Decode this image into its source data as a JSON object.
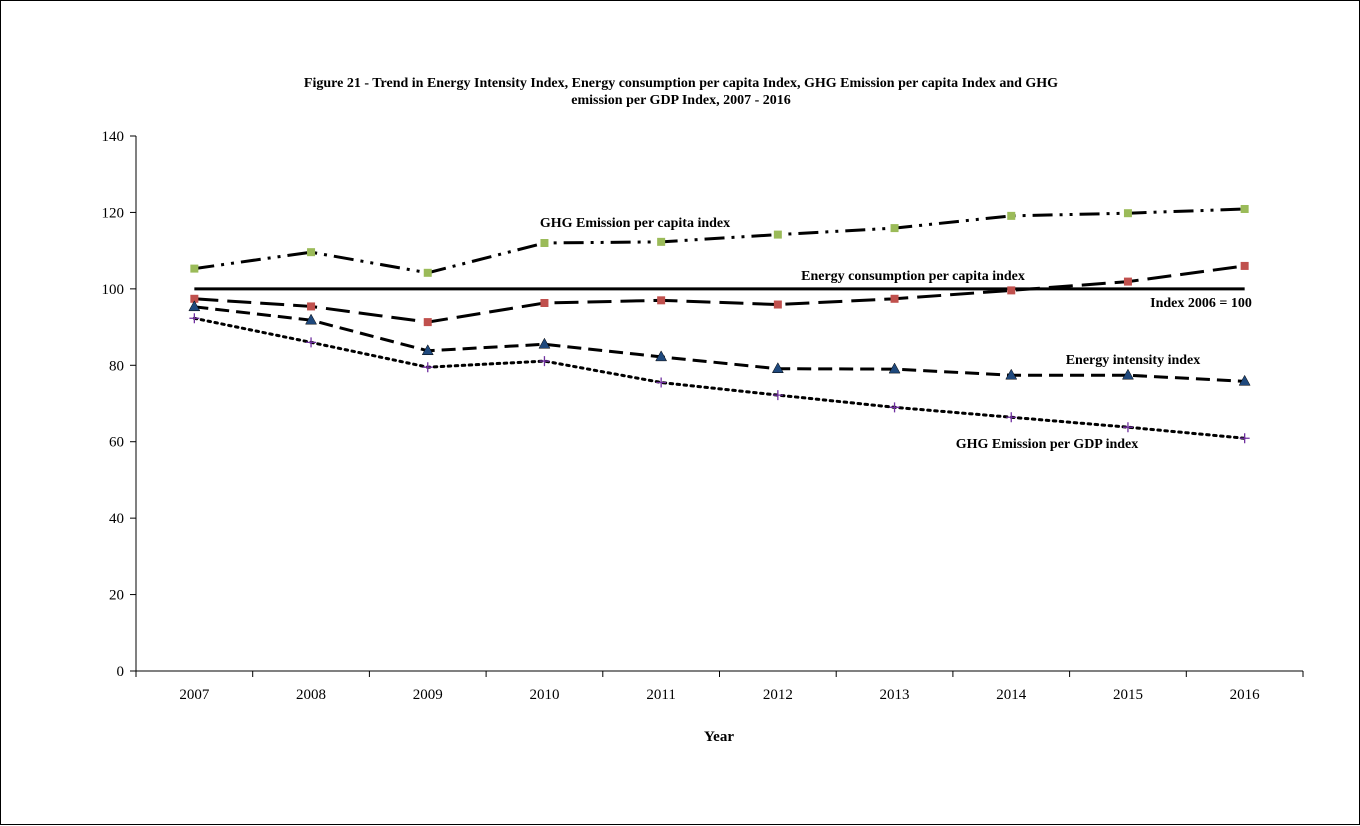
{
  "chart_data": {
    "type": "line",
    "title_line1": "Figure 21 - Trend in Energy Intensity Index, Energy consumption per capita Index, GHG Emission per capita Index and GHG",
    "title_line2": "emission per GDP Index, 2007 - 2016",
    "xlabel": "Year",
    "ylabel": "",
    "ylim": [
      0,
      140
    ],
    "yticks": [
      0,
      20,
      40,
      60,
      80,
      100,
      120,
      140
    ],
    "x": [
      "2007",
      "2008",
      "2009",
      "2010",
      "2011",
      "2012",
      "2013",
      "2014",
      "2015",
      "2016"
    ],
    "grid": false,
    "legend": "none",
    "reference_line": {
      "value": 100,
      "label": "Index 2006 = 100"
    },
    "series": [
      {
        "name": "GHG Emission per capita index",
        "values": [
          105.3,
          109.6,
          104.2,
          112.0,
          112.3,
          114.2,
          115.9,
          119.1,
          119.8,
          120.9
        ],
        "style": "dash-dot-dot",
        "marker": "square",
        "marker_color": "#9bbb59"
      },
      {
        "name": "Energy consumption per capita index",
        "values": [
          97.4,
          95.4,
          91.3,
          96.3,
          97.0,
          95.9,
          97.4,
          99.6,
          101.9,
          106.0
        ],
        "style": "long-dash",
        "marker": "square",
        "marker_color": "#c0504d"
      },
      {
        "name": "Energy intensity index",
        "values": [
          95.3,
          91.8,
          83.8,
          85.5,
          82.2,
          79.1,
          79.0,
          77.4,
          77.4,
          75.8
        ],
        "style": "dash",
        "marker": "triangle",
        "marker_color": "#1f497d"
      },
      {
        "name": "GHG Emission per GDP index",
        "values": [
          92.3,
          86.0,
          79.5,
          81.1,
          75.5,
          72.2,
          69.0,
          66.4,
          63.8,
          60.9
        ],
        "style": "dot",
        "marker": "plus",
        "marker_color": "#7030a0"
      }
    ]
  }
}
